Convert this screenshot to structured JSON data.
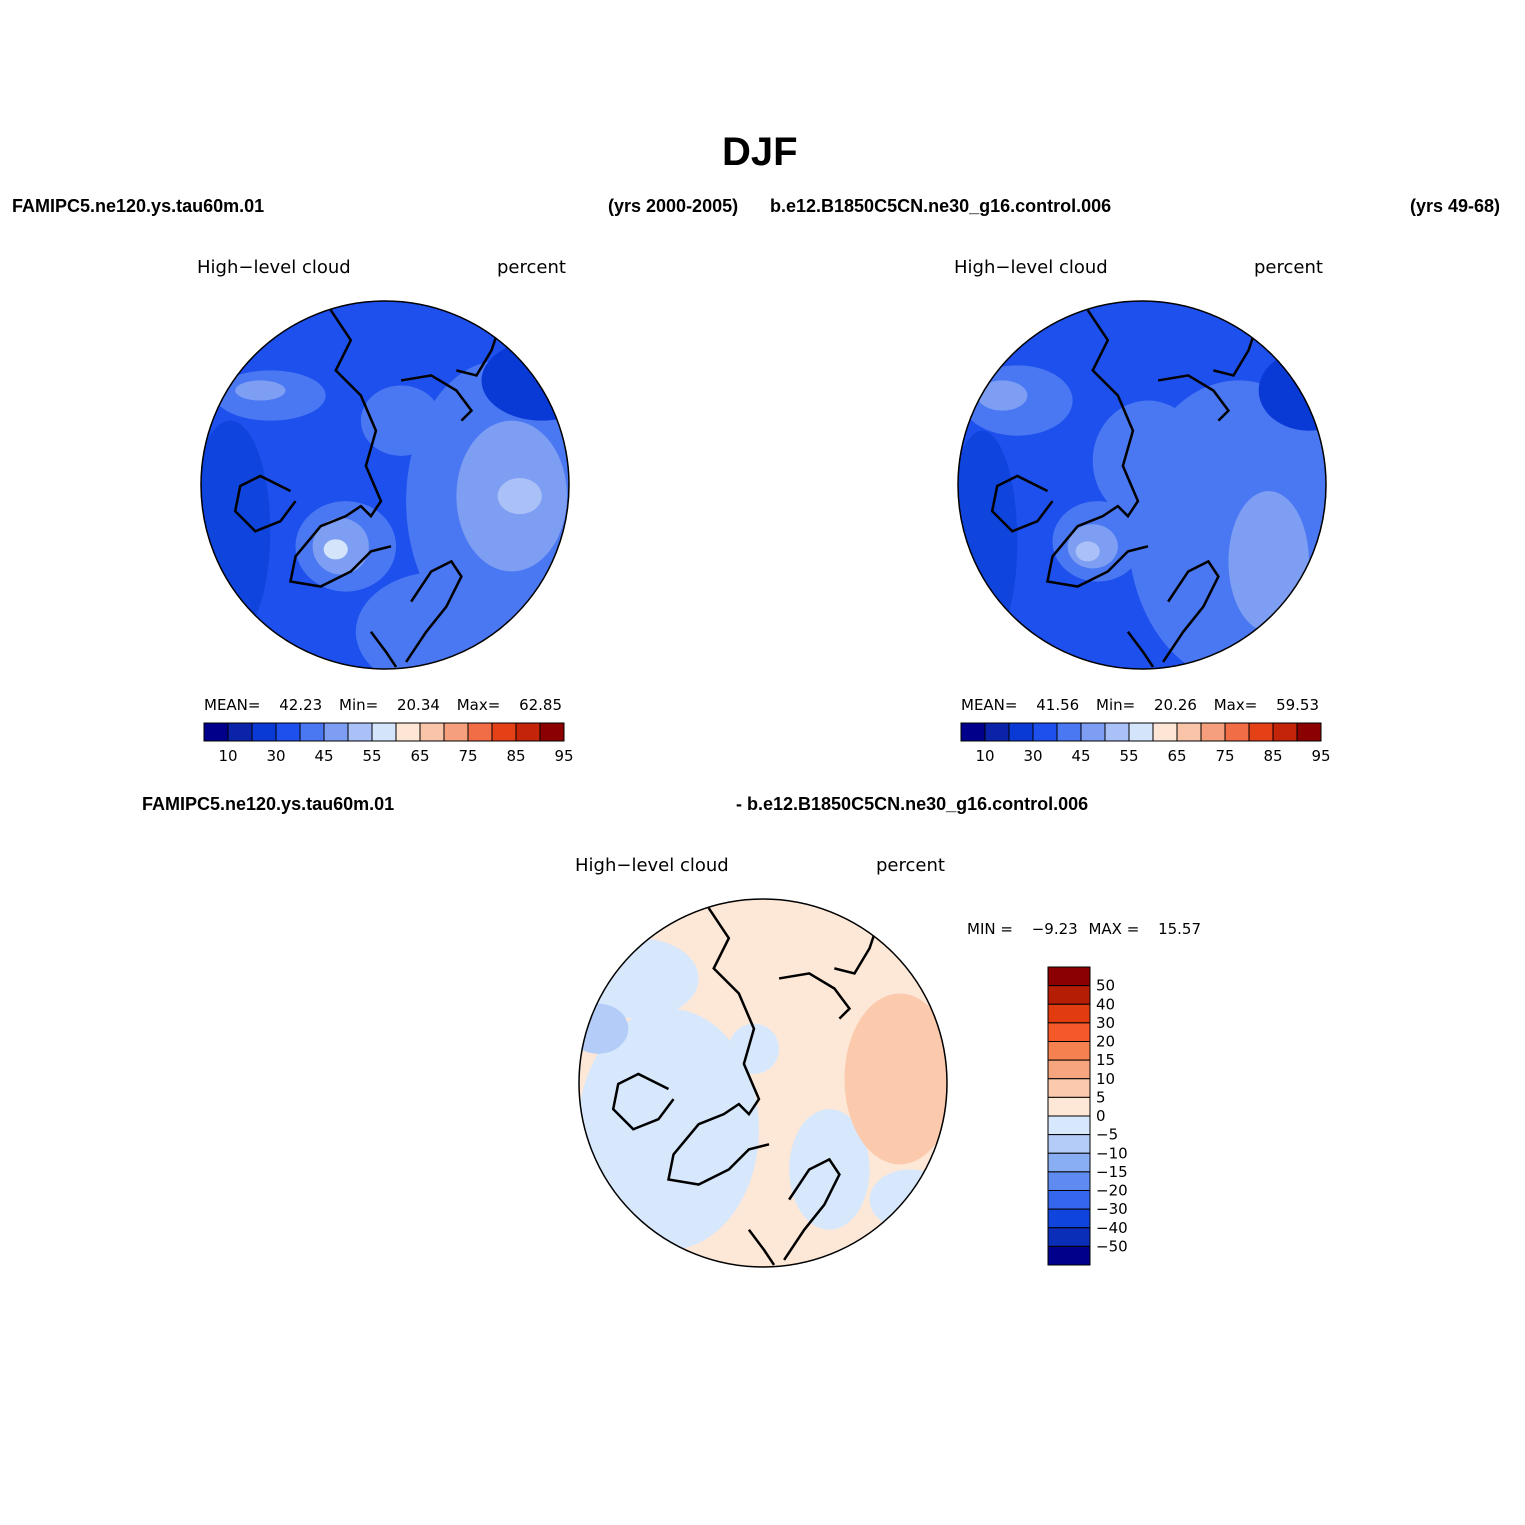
{
  "title": "DJF",
  "header": {
    "left_case": "FAMIPC5.ne120.ys.tau60m.01",
    "left_years": "(yrs 2000-2005)",
    "right_case": "b.e12.B1850C5CN.ne30_g16.control.006",
    "right_years": "(yrs 49-68)",
    "diff_left": "FAMIPC5.ne120.ys.tau60m.01",
    "diff_right": "- b.e12.B1850C5CN.ne30_g16.control.006"
  },
  "panels": [
    {
      "variable": "High−level cloud",
      "units": "percent",
      "mean_label": "MEAN=",
      "mean": "42.23",
      "min_label": "Min=",
      "min": "20.34",
      "max_label": "Max=",
      "max": "62.85"
    },
    {
      "variable": "High−level cloud",
      "units": "percent",
      "mean_label": "MEAN=",
      "mean": "41.56",
      "min_label": "Min=",
      "min": "20.26",
      "max_label": "Max=",
      "max": "59.53"
    }
  ],
  "diff_panel": {
    "variable": "High−level cloud",
    "units": "percent",
    "min_label": "MIN =",
    "min": "−9.23",
    "max_label": "MAX =",
    "max": "15.57"
  },
  "colorbar_horizontal": {
    "colors": [
      "#00008b",
      "#0a23a8",
      "#0a3ad6",
      "#1e50ee",
      "#4a78f2",
      "#7d9ef2",
      "#a9c1f7",
      "#d3e4fb",
      "#fde6d5",
      "#f9c4a7",
      "#f59f7c",
      "#f06d45",
      "#e44116",
      "#c42509",
      "#8b0000"
    ],
    "labels": [
      "10",
      "30",
      "45",
      "55",
      "65",
      "75",
      "85",
      "95"
    ]
  },
  "colorbar_vertical": {
    "colors": [
      "#8b0000",
      "#b51e05",
      "#e03c0f",
      "#f5592a",
      "#f58150",
      "#f7a57e",
      "#fbcaad",
      "#fde8d8",
      "#d7e8fc",
      "#b4cdf8",
      "#8aaef3",
      "#5f8bf1",
      "#3566ee",
      "#0f45dd",
      "#0a2eb8",
      "#00008b"
    ],
    "labels": [
      "50",
      "40",
      "30",
      "20",
      "15",
      "10",
      "5",
      "0",
      "−5",
      "−10",
      "−15",
      "−20",
      "−30",
      "−40",
      "−50"
    ]
  },
  "chart_data": {
    "type": "heatmap",
    "projection": "north polar stereographic",
    "season": "DJF",
    "variable": "High-level cloud",
    "units": "percent",
    "panels": [
      {
        "case": "FAMIPC5.ne120.ys.tau60m.01",
        "years": "2000-2005",
        "mean": 42.23,
        "min": 20.34,
        "max": 62.85
      },
      {
        "case": "b.e12.B1850C5CN.ne30_g16.control.006",
        "years": "49-68",
        "mean": 41.56,
        "min": 20.26,
        "max": 59.53
      },
      {
        "case": "difference",
        "min": -9.23,
        "max": 15.57
      }
    ],
    "contour_levels_fields": [
      10,
      15,
      20,
      25,
      30,
      35,
      40,
      45,
      50,
      55,
      60,
      65,
      70,
      75,
      80,
      85,
      90,
      95
    ],
    "contour_levels_diff": [
      -50,
      -40,
      -30,
      -20,
      -15,
      -10,
      -5,
      0,
      5,
      10,
      15,
      20,
      30,
      40,
      50
    ]
  }
}
